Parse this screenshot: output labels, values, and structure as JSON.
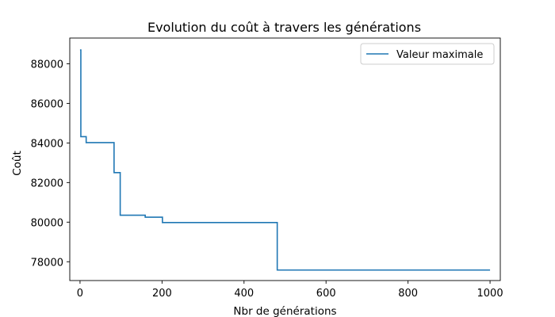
{
  "colors": {
    "background": "#ffffff",
    "axes_edge": "#000000",
    "series_line": "#1f77b4"
  },
  "chart_data": {
    "type": "line",
    "title": "Evolution du coût à travers les générations",
    "xlabel": "Nbr de générations",
    "ylabel": "Coût",
    "xlim": [
      -25,
      1025
    ],
    "ylim": [
      77050,
      89300
    ],
    "xticks": [
      0,
      200,
      400,
      600,
      800,
      1000
    ],
    "yticks": [
      78000,
      80000,
      82000,
      84000,
      86000,
      88000
    ],
    "grid": false,
    "legend_position": "top-right",
    "series": [
      {
        "name": "Valeur maximale",
        "color": "#1f77b4",
        "drawstyle": "steps-post",
        "points": [
          [
            0,
            88700
          ],
          [
            2,
            84320
          ],
          [
            15,
            84020
          ],
          [
            83,
            82500
          ],
          [
            98,
            80350
          ],
          [
            159,
            80250
          ],
          [
            201,
            79980
          ],
          [
            481,
            77580
          ],
          [
            1000,
            77580
          ]
        ]
      }
    ]
  }
}
